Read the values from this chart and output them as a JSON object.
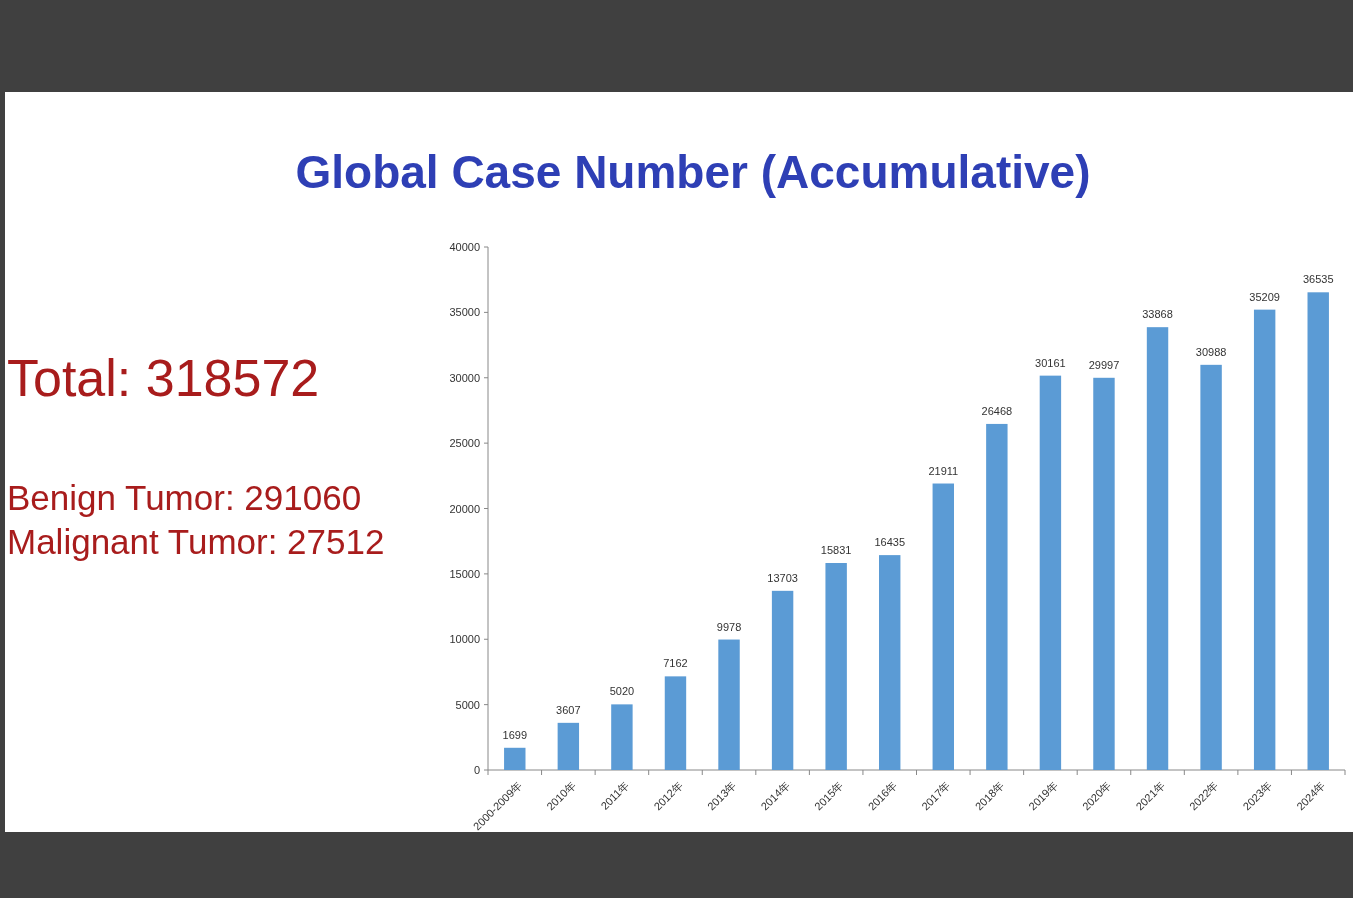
{
  "chart_data": {
    "type": "bar",
    "title": "Global Case Number (Accumulative)",
    "categories": [
      "2000-2009年",
      "2010年",
      "2011年",
      "2012年",
      "2013年",
      "2014年",
      "2015年",
      "2016年",
      "2017年",
      "2018年",
      "2019年",
      "2020年",
      "2021年",
      "2022年",
      "2023年",
      "2024年"
    ],
    "values": [
      1699,
      3607,
      5020,
      7162,
      9978,
      13703,
      15831,
      16435,
      21911,
      26468,
      30161,
      29997,
      33868,
      30988,
      35209,
      36535
    ],
    "color": "#5b9bd5",
    "ylim": [
      0,
      40000
    ],
    "yticks": [
      0,
      5000,
      10000,
      15000,
      20000,
      25000,
      30000,
      35000,
      40000
    ],
    "data_labels": true,
    "grid": false,
    "annotations": [
      "Total: 318572",
      "Benign Tumor: 291060",
      "Malignant Tumor: 27512"
    ]
  }
}
